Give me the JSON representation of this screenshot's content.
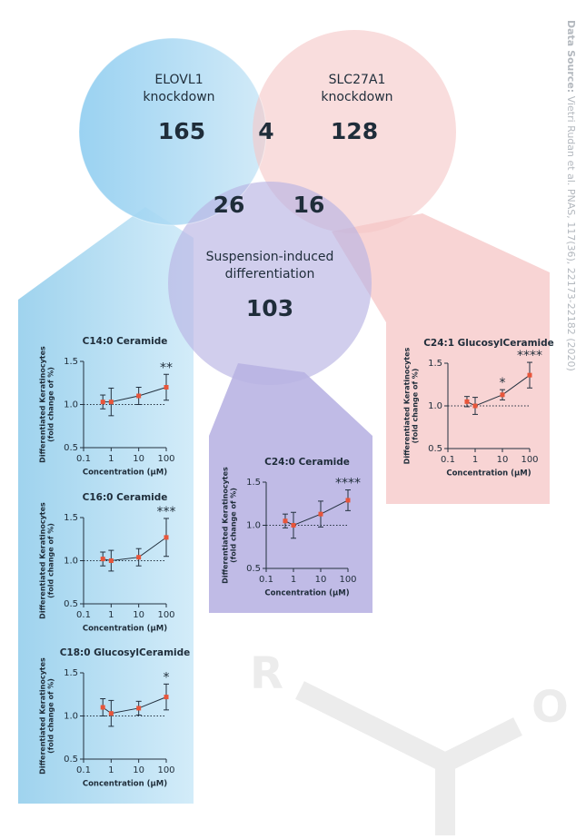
{
  "source": {
    "heading": "Data Source:",
    "citation": "Vietri Rudan et al. PNAS, 117(36), 22173-22182 (2020)"
  },
  "venn": {
    "sets": [
      {
        "label": [
          "ELOVL1",
          "knockdown"
        ],
        "count": 165
      },
      {
        "label": [
          "SLC27A1",
          "knockdown"
        ],
        "count": 128
      },
      {
        "label": [
          "Suspension-induced",
          "differentiation"
        ],
        "count": 103
      }
    ],
    "overlaps": [
      4,
      26,
      16
    ]
  },
  "chart_data": [
    {
      "type": "line",
      "title": "C14:0 Ceramide",
      "x": [
        0.5,
        1,
        10,
        100
      ],
      "values": [
        1.03,
        1.03,
        1.1,
        1.2
      ],
      "errors": [
        0.08,
        0.16,
        0.1,
        0.15
      ],
      "xlim": [
        0.1,
        100
      ],
      "xticks": [
        0.1,
        1,
        10,
        100
      ],
      "log_x": true,
      "ylim": [
        0.5,
        1.5
      ],
      "yticks": [
        0.5,
        {
          "value": 1,
          "label": "1.0"
        },
        1.5
      ],
      "xlabel": "Concentration (µM)",
      "ylabel": [
        "Differentiated Keratinocytes",
        "(fold change of %)"
      ],
      "reference_line": 1,
      "annotations": [
        {
          "x": 100,
          "text": "**"
        }
      ],
      "color": "#e8553a",
      "line_color": "#23313f"
    },
    {
      "type": "line",
      "title": "C16:0 Ceramide",
      "x": [
        0.5,
        1,
        10,
        100
      ],
      "values": [
        1.02,
        1.0,
        1.04,
        1.27
      ],
      "errors": [
        0.08,
        0.12,
        0.1,
        0.22
      ],
      "xlim": [
        0.1,
        100
      ],
      "xticks": [
        0.1,
        1,
        10,
        100
      ],
      "log_x": true,
      "ylim": [
        0.5,
        1.5
      ],
      "yticks": [
        0.5,
        {
          "value": 1,
          "label": "1.0"
        },
        1.5
      ],
      "xlabel": "Concentration (µM)",
      "ylabel": [
        "Differentiated Keratinocytes",
        "(fold change of %)"
      ],
      "reference_line": 1,
      "annotations": [
        {
          "x": 100,
          "text": "***"
        }
      ],
      "color": "#e8553a",
      "line_color": "#23313f"
    },
    {
      "type": "line",
      "title": "C18:0 GlucosylCeramide",
      "x": [
        0.5,
        1,
        10,
        100
      ],
      "values": [
        1.1,
        1.03,
        1.09,
        1.22
      ],
      "errors": [
        0.1,
        0.15,
        0.08,
        0.15
      ],
      "xlim": [
        0.1,
        100
      ],
      "xticks": [
        0.1,
        1,
        10,
        100
      ],
      "log_x": true,
      "ylim": [
        0.5,
        1.5
      ],
      "yticks": [
        0.5,
        {
          "value": 1,
          "label": "1.0"
        },
        1.5
      ],
      "xlabel": "Concentration (µM)",
      "ylabel": [
        "Differentiated Keratinocytes",
        "(fold change of %)"
      ],
      "reference_line": 1,
      "annotations": [
        {
          "x": 100,
          "text": "*"
        }
      ],
      "color": "#e8553a",
      "line_color": "#23313f"
    },
    {
      "type": "line",
      "title": "C24:0 Ceramide",
      "x": [
        0.5,
        1,
        10,
        100
      ],
      "values": [
        1.05,
        1.0,
        1.13,
        1.29
      ],
      "errors": [
        0.08,
        0.15,
        0.15,
        0.12
      ],
      "xlim": [
        0.1,
        100
      ],
      "xticks": [
        0.1,
        1,
        10,
        100
      ],
      "log_x": true,
      "ylim": [
        0.5,
        1.5
      ],
      "yticks": [
        0.5,
        {
          "value": 1,
          "label": "1.0"
        },
        1.5
      ],
      "xlabel": "Concentration (µM)",
      "ylabel": [
        "Differentiated Keratinocytes",
        "(fold change of %)"
      ],
      "reference_line": 1,
      "annotations": [
        {
          "x": 100,
          "text": "****"
        }
      ],
      "color": "#e8553a",
      "line_color": "#23313f"
    },
    {
      "type": "line",
      "title": "C24:1 GlucosylCeramide",
      "x": [
        0.5,
        1,
        10,
        100
      ],
      "values": [
        1.05,
        1.0,
        1.13,
        1.36
      ],
      "errors": [
        0.06,
        0.1,
        0.06,
        0.15
      ],
      "xlim": [
        0.1,
        100
      ],
      "xticks": [
        0.1,
        1,
        10,
        100
      ],
      "log_x": true,
      "ylim": [
        0.5,
        1.5
      ],
      "yticks": [
        0.5,
        {
          "value": 1,
          "label": "1.0"
        },
        1.5
      ],
      "xlabel": "Concentration (µM)",
      "ylabel": [
        "Differentiated Keratinocytes",
        "(fold change of %)"
      ],
      "reference_line": 1,
      "annotations": [
        {
          "x": 10,
          "text": "*"
        },
        {
          "x": 100,
          "text": "****"
        }
      ],
      "color": "#e8553a",
      "line_color": "#23313f"
    }
  ]
}
